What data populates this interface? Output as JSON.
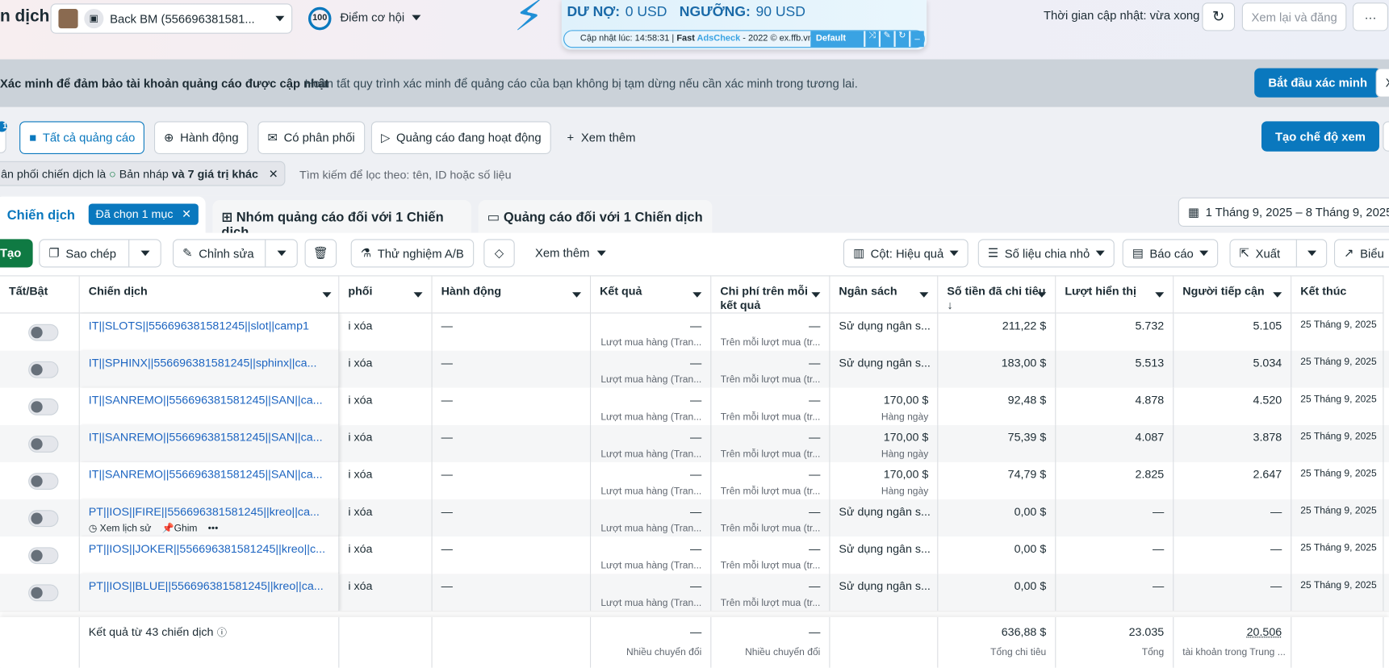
{
  "header": {
    "title": "n dịch",
    "account": "Back BM (556696381581...",
    "score": "100",
    "score_label": "Điểm cơ hội",
    "update_time": "Thời gian cập nhật: vừa xong",
    "review_button": "Xem lại và đăng",
    "more": "···"
  },
  "ext": {
    "debt_label": "DƯ NỢ:",
    "debt_value": "0 USD",
    "threshold_label": "NGƯỠNG:",
    "threshold_value": "90 USD",
    "updated": "Cập nhật lúc: 14:58:31 | ",
    "brand1": "Fast ",
    "brand2": "AdsCheck",
    "footer": " - 2022 © ex.ffb.vn",
    "profile": "Default"
  },
  "banner": {
    "title": "Xác minh để đảm bảo tài khoản quảng cáo được cập nhật",
    "text": "Hoàn tất quy trình xác minh để quảng cáo của bạn không bị tạm dừng nếu cần xác minh trong tương lai.",
    "button": "Bắt đầu xác minh",
    "close": "X"
  },
  "filters": {
    "badge": "1",
    "items": [
      "Tất cả quảng cáo",
      "Hành động",
      "Có phân phối",
      "Quảng cáo đang hoạt động"
    ],
    "more": "Xem thêm",
    "create_view": "Tạo chế độ xem",
    "chip_text": "ân phối chiến dịch là ",
    "chip_draft": "Bản nháp",
    "chip_more": "và 7 giá trị khác",
    "search_placeholder": "Tìm kiếm để lọc theo: tên, ID hoặc số liệu"
  },
  "tabs": {
    "campaign": "Chiến dịch",
    "selected": "Đã chọn 1 mục",
    "adset": "Nhóm quảng cáo đối với 1 Chiến dịch",
    "ad": "Quảng cáo đối với 1 Chiến dịch",
    "date_range": "1 Tháng 9, 2025 – 8 Tháng 9, 2025"
  },
  "toolbar": {
    "create": "Tạo",
    "copy": "Sao chép",
    "edit": "Chỉnh sửa",
    "ab": "Thử nghiệm A/B",
    "more": "Xem thêm",
    "columns": "Cột: Hiệu quả",
    "breakdown": "Số liệu chia nhỏ",
    "reports": "Báo cáo",
    "export": "Xuất",
    "charts": "Biểu"
  },
  "table": {
    "headers": [
      "Tất/Bật",
      "Chiến dịch",
      "phối",
      "Hành động",
      "Kết quả",
      "Chi phí trên mỗi kết quả",
      "Ngân sách",
      "Số tiền đã chi tiêu ↓",
      "Lượt hiển thị",
      "Người tiếp cận",
      "Kết thúc"
    ],
    "result_sub": "Lượt mua hàng (Tran...",
    "cost_sub": "Trên mỗi lượt mua (tr...",
    "rows": [
      {
        "name": "IT||SLOTS||556696381581245||slot||camp1",
        "delivery": "i xóa",
        "action": "—",
        "result": "—",
        "cost": "—",
        "budget": "Sử dụng ngân s...",
        "budget_sub": "",
        "spent": "211,22 $",
        "impressions": "5.732",
        "reach": "5.105",
        "end": "25 Tháng 9, 2025"
      },
      {
        "name": "IT||SPHINX||556696381581245||sphinx||ca...",
        "delivery": "i xóa",
        "action": "—",
        "result": "—",
        "cost": "—",
        "budget": "Sử dụng ngân s...",
        "budget_sub": "",
        "spent": "183,00 $",
        "impressions": "5.513",
        "reach": "5.034",
        "end": "25 Tháng 9, 2025"
      },
      {
        "name": "IT||SANREMO||556696381581245||SAN||ca...",
        "delivery": "i xóa",
        "action": "—",
        "result": "—",
        "cost": "—",
        "budget": "170,00 $",
        "budget_sub": "Hàng ngày",
        "spent": "92,48 $",
        "impressions": "4.878",
        "reach": "4.520",
        "end": "25 Tháng 9, 2025"
      },
      {
        "name": "IT||SANREMO||556696381581245||SAN||ca...",
        "delivery": "i xóa",
        "action": "—",
        "result": "—",
        "cost": "—",
        "budget": "170,00 $",
        "budget_sub": "Hàng ngày",
        "spent": "75,39 $",
        "impressions": "4.087",
        "reach": "3.878",
        "end": "25 Tháng 9, 2025"
      },
      {
        "name": "IT||SANREMO||556696381581245||SAN||ca...",
        "delivery": "i xóa",
        "action": "—",
        "result": "—",
        "cost": "—",
        "budget": "170,00 $",
        "budget_sub": "Hàng ngày",
        "spent": "74,79 $",
        "impressions": "2.825",
        "reach": "2.647",
        "end": "25 Tháng 9, 2025"
      },
      {
        "name": "PT||IOS||FIRE||556696381581245||kreo||ca...",
        "delivery": "i xóa",
        "action": "—",
        "result": "—",
        "cost": "—",
        "budget": "Sử dụng ngân s...",
        "budget_sub": "",
        "spent": "0,00 $",
        "impressions": "—",
        "reach": "—",
        "end": "25 Tháng 9, 2025"
      },
      {
        "name": "PT||IOS||JOKER||556696381581245||kreo||c...",
        "delivery": "i xóa",
        "action": "—",
        "result": "—",
        "cost": "—",
        "budget": "Sử dụng ngân s...",
        "budget_sub": "",
        "spent": "0,00 $",
        "impressions": "—",
        "reach": "—",
        "end": "25 Tháng 9, 2025"
      },
      {
        "name": "PT||IOS||BLUE||556696381581245||kreo||ca...",
        "delivery": "i xóa",
        "action": "—",
        "result": "—",
        "cost": "—",
        "budget": "Sử dụng ngân s...",
        "budget_sub": "",
        "spent": "0,00 $",
        "impressions": "—",
        "reach": "—",
        "end": "25 Tháng 9, 2025"
      }
    ],
    "hover_actions": {
      "history": "Xem lịch sử",
      "pin": "Ghim",
      "more": "•••"
    },
    "footer": {
      "label": "Kết quả từ 43 chiến dịch",
      "result": "—",
      "result_sub": "Nhiều chuyển đổi",
      "cost": "—",
      "cost_sub": "Nhiều chuyển đổi",
      "spent": "636,88 $",
      "spent_sub": "Tổng chi tiêu",
      "impressions": "23.035",
      "impressions_sub": "Tổng",
      "reach": "20.506",
      "reach_sub": "tài khoản trong Trung ..."
    }
  },
  "colors": {
    "primary": "#0a78be",
    "link": "#1d65c1",
    "create": "#0f7a43",
    "ext": "#3aa3e3"
  }
}
